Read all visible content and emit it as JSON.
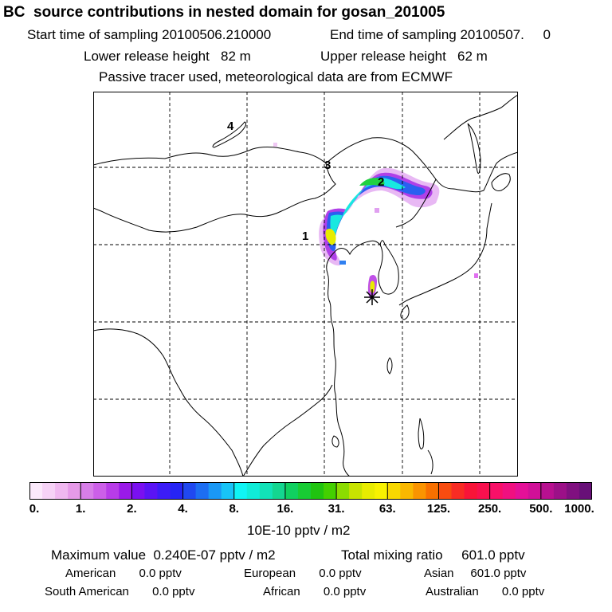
{
  "header": {
    "title": "BC  source contributions in nested domain for gosan_201005",
    "start_label": "Start time of sampling 20100506.210000",
    "end_label": "End time of sampling 20100507.     0",
    "lower_release": "Lower release height   82 m",
    "upper_release": "Upper release height   62 m",
    "tracer_note": "Passive tracer used, meteorological data are from ECMWF"
  },
  "map": {
    "markers": [
      "4",
      "3",
      "2",
      "1"
    ],
    "receptor": "gosan"
  },
  "colorbar": {
    "ticks": [
      "0.",
      "1.",
      "2.",
      "4.",
      "8.",
      "16.",
      "31.",
      "63.",
      "125.",
      "250.",
      "500.",
      "1000."
    ],
    "units": "10E-10 pptv / m2",
    "colors": [
      "#fbe9fb",
      "#f6d2f6",
      "#f0b8f0",
      "#e69ae8",
      "#d77ee8",
      "#cc5fe8",
      "#b83ce8",
      "#9a1ae8",
      "#7a10f0",
      "#5a14f5",
      "#3c1cf7",
      "#2624f5",
      "#2048f0",
      "#1d6ef2",
      "#1a98f5",
      "#18c4f7",
      "#10f4f4",
      "#10ecd8",
      "#12e2b8",
      "#14d690",
      "#10d060",
      "#18cc34",
      "#20c410",
      "#44d000",
      "#8cdc00",
      "#c8e400",
      "#e8ec00",
      "#f8f200",
      "#f8d800",
      "#fab800",
      "#fa9400",
      "#f87000",
      "#f84c10",
      "#f82c24",
      "#f81438",
      "#f8104e",
      "#f81068",
      "#f01080",
      "#e41098",
      "#d01098",
      "#b81090",
      "#9c1088",
      "#801080",
      "#681078"
    ]
  },
  "footer": {
    "max_value": "Maximum value  0.240E-07 pptv / m2",
    "total_mixing": "Total mixing ratio     601.0 pptv",
    "american": "American       0.0 pptv",
    "european": "European       0.0 pptv",
    "asian": "Asian     601.0 pptv",
    "south_american": "South American       0.0 pptv",
    "african": "African       0.0 pptv",
    "australian": "Australian       0.0 pptv"
  }
}
